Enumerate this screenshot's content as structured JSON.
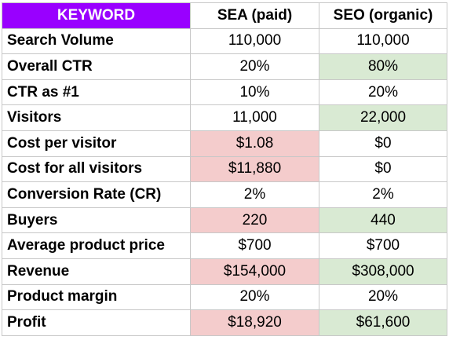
{
  "colors": {
    "keyword_header_bg": "#9900ff",
    "keyword_header_text": "#ffffff",
    "highlight_red": "#f4cccc",
    "highlight_green": "#d9ead3",
    "grid": "#c8c8c8"
  },
  "header": {
    "keyword": "KEYWORD",
    "sea": "SEA (paid)",
    "seo": "SEO (organic)"
  },
  "rows": [
    {
      "label": "Search Volume",
      "sea": "110,000",
      "seo": "110,000",
      "sea_hl": "",
      "seo_hl": ""
    },
    {
      "label": "Overall CTR",
      "sea": "20%",
      "seo": "80%",
      "sea_hl": "",
      "seo_hl": "green"
    },
    {
      "label": "CTR as #1",
      "sea": "10%",
      "seo": "20%",
      "sea_hl": "",
      "seo_hl": ""
    },
    {
      "label": "Visitors",
      "sea": "11,000",
      "seo": "22,000",
      "sea_hl": "",
      "seo_hl": "green"
    },
    {
      "label": "Cost per visitor",
      "sea": "$1.08",
      "seo": "$0",
      "sea_hl": "red",
      "seo_hl": ""
    },
    {
      "label": "Cost for all visitors",
      "sea": "$11,880",
      "seo": "$0",
      "sea_hl": "red",
      "seo_hl": ""
    },
    {
      "label": "Conversion Rate (CR)",
      "sea": "2%",
      "seo": "2%",
      "sea_hl": "",
      "seo_hl": ""
    },
    {
      "label": "Buyers",
      "sea": "220",
      "seo": "440",
      "sea_hl": "red",
      "seo_hl": "green"
    },
    {
      "label": "Average product price",
      "sea": "$700",
      "seo": "$700",
      "sea_hl": "",
      "seo_hl": ""
    },
    {
      "label": "Revenue",
      "sea": "$154,000",
      "seo": "$308,000",
      "sea_hl": "red",
      "seo_hl": "green"
    },
    {
      "label": "Product margin",
      "sea": "20%",
      "seo": "20%",
      "sea_hl": "",
      "seo_hl": ""
    },
    {
      "label": "Profit",
      "sea": "$18,920",
      "seo": "$61,600",
      "sea_hl": "red",
      "seo_hl": "green"
    }
  ]
}
